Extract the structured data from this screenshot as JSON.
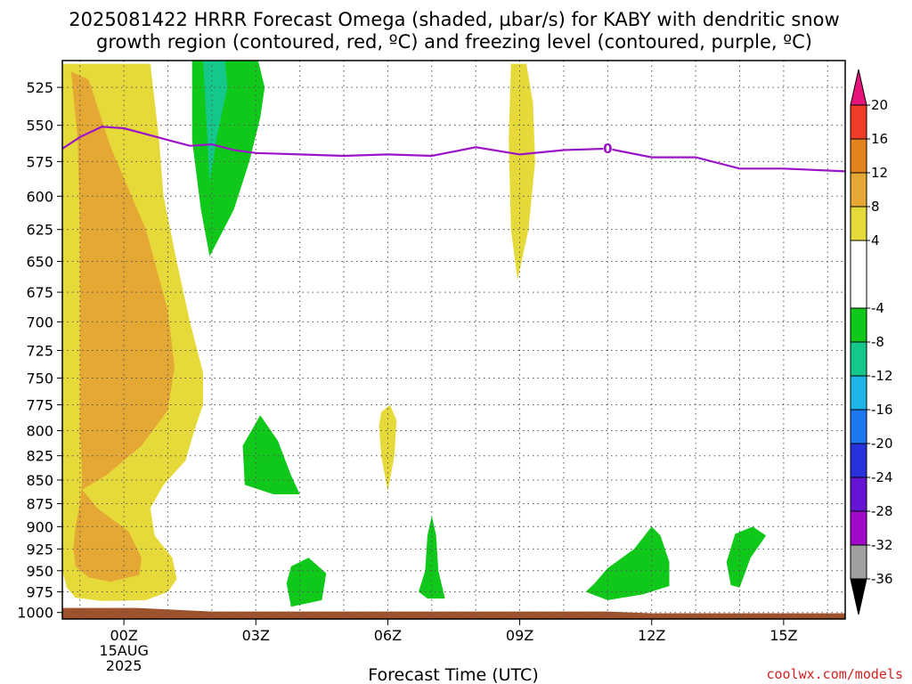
{
  "colors": {
    "omega": {
      "4": "#e6da3a",
      "8": "#e6a834",
      "-8": "#10c81a",
      "-12": "#14c88c",
      "freezing": "#9b14c8",
      "ground": "#a0522d"
    },
    "colorbar": [
      {
        "from": -40,
        "to": -36,
        "color": "#000000"
      },
      {
        "from": -36,
        "to": -32,
        "color": "#a0a0a0"
      },
      {
        "from": -32,
        "to": -28,
        "color": "#a00ac8"
      },
      {
        "from": -28,
        "to": -24,
        "color": "#6414d2"
      },
      {
        "from": -24,
        "to": -20,
        "color": "#2832dc"
      },
      {
        "from": -20,
        "to": -16,
        "color": "#1e78f0"
      },
      {
        "from": -16,
        "to": -12,
        "color": "#1eb4e6"
      },
      {
        "from": -12,
        "to": -8,
        "color": "#14c88c"
      },
      {
        "from": -8,
        "to": -4,
        "color": "#10c81a"
      },
      {
        "from": -4,
        "to": 4,
        "color": "#ffffff"
      },
      {
        "from": 4,
        "to": 8,
        "color": "#e6da3a"
      },
      {
        "from": 8,
        "to": 12,
        "color": "#e6a834"
      },
      {
        "from": 12,
        "to": 16,
        "color": "#e6821e"
      },
      {
        "from": 16,
        "to": 20,
        "color": "#f03c28"
      },
      {
        "from": 20,
        "to": 24,
        "color": "#e6147a"
      }
    ]
  },
  "chart_data": {
    "type": "contour",
    "title_line1": "2025081422 HRRR Forecast Omega (shaded, µbar/s) for KABY with dendritic snow",
    "title_line2": "growth region (contoured, red, ºC) and freezing level (contoured, purple, ºC)",
    "xlabel": "Forecast Time (UTC)",
    "credit": "coolwx.com/models",
    "x_unit": "hours after 2025-08-15 00Z",
    "xlim": [
      -1.4,
      16.4
    ],
    "ylim": [
      1008,
      508
    ],
    "y_scale": "log pressure (hPa), inverted",
    "x_ticks": [
      {
        "x": 0,
        "label": "00Z",
        "sub1": "15AUG",
        "sub2": "2025"
      },
      {
        "x": 3,
        "label": "03Z"
      },
      {
        "x": 6,
        "label": "06Z"
      },
      {
        "x": 9,
        "label": "09Z"
      },
      {
        "x": 12,
        "label": "12Z"
      },
      {
        "x": 15,
        "label": "15Z"
      }
    ],
    "y_ticks": [
      525,
      550,
      575,
      600,
      625,
      650,
      675,
      700,
      725,
      750,
      775,
      800,
      825,
      850,
      875,
      900,
      925,
      950,
      975,
      1000
    ],
    "grid": true,
    "colorbar_labels": [
      "20",
      "16",
      "12",
      "8",
      "4",
      "-4",
      "-8",
      "-12",
      "-16",
      "-20",
      "-24",
      "-28",
      "-32",
      "-36"
    ],
    "regions": [
      {
        "level": "4",
        "points": [
          [
            -1.6,
            510
          ],
          [
            -1.5,
            650
          ],
          [
            -1.5,
            850
          ],
          [
            -1.5,
            925
          ],
          [
            -1.4,
            950
          ],
          [
            -1.3,
            970
          ],
          [
            -1.1,
            982
          ],
          [
            -0.5,
            986
          ],
          [
            0.5,
            985
          ],
          [
            1.0,
            975
          ],
          [
            1.2,
            960
          ],
          [
            1.1,
            935
          ],
          [
            0.7,
            910
          ],
          [
            0.6,
            880
          ],
          [
            0.9,
            855
          ],
          [
            1.4,
            830
          ],
          [
            1.6,
            800
          ],
          [
            1.8,
            775
          ],
          [
            1.8,
            745
          ],
          [
            1.5,
            700
          ],
          [
            1.2,
            650
          ],
          [
            0.9,
            600
          ],
          [
            0.8,
            560
          ],
          [
            0.6,
            510
          ]
        ]
      },
      {
        "level": "8",
        "points": [
          [
            -1.2,
            515
          ],
          [
            -1.05,
            560
          ],
          [
            -1.0,
            625
          ],
          [
            -1.0,
            725
          ],
          [
            -1.0,
            800
          ],
          [
            -0.95,
            850
          ],
          [
            -1.0,
            875
          ],
          [
            -1.1,
            900
          ],
          [
            -1.15,
            925
          ],
          [
            -1.1,
            945
          ],
          [
            -0.8,
            958
          ],
          [
            -0.3,
            963
          ],
          [
            0.35,
            955
          ],
          [
            0.4,
            935
          ],
          [
            0.1,
            905
          ],
          [
            -0.6,
            880
          ],
          [
            -0.95,
            860
          ],
          [
            -0.4,
            845
          ],
          [
            0.4,
            815
          ],
          [
            1.0,
            780
          ],
          [
            1.15,
            740
          ],
          [
            1.0,
            690
          ],
          [
            0.5,
            625
          ],
          [
            -0.3,
            565
          ],
          [
            -0.8,
            520
          ]
        ]
      },
      {
        "level": "-8",
        "points": [
          [
            1.55,
            508
          ],
          [
            1.55,
            560
          ],
          [
            1.75,
            610
          ],
          [
            1.95,
            646
          ],
          [
            2.5,
            610
          ],
          [
            2.85,
            575
          ],
          [
            3.1,
            545
          ],
          [
            3.2,
            525
          ],
          [
            3.05,
            508
          ]
        ]
      },
      {
        "level": "-12",
        "points": [
          [
            1.8,
            508
          ],
          [
            1.9,
            560
          ],
          [
            1.95,
            590
          ],
          [
            2.1,
            560
          ],
          [
            2.35,
            525
          ],
          [
            2.3,
            508
          ]
        ]
      },
      {
        "level": "4",
        "points": [
          [
            8.8,
            510
          ],
          [
            8.75,
            560
          ],
          [
            8.8,
            625
          ],
          [
            8.95,
            665
          ],
          [
            9.2,
            625
          ],
          [
            9.35,
            575
          ],
          [
            9.3,
            535
          ],
          [
            9.15,
            510
          ]
        ]
      },
      {
        "level": "4",
        "points": [
          [
            5.8,
            795
          ],
          [
            5.85,
            825
          ],
          [
            6.0,
            862
          ],
          [
            6.15,
            825
          ],
          [
            6.2,
            790
          ],
          [
            6.05,
            775
          ],
          [
            5.85,
            782
          ]
        ]
      },
      {
        "level": "-8",
        "points": [
          [
            2.7,
            815
          ],
          [
            2.75,
            855
          ],
          [
            3.4,
            865
          ],
          [
            4.0,
            865
          ],
          [
            3.8,
            845
          ],
          [
            3.5,
            810
          ],
          [
            3.1,
            785
          ]
        ]
      },
      {
        "level": "-8",
        "points": [
          [
            3.7,
            965
          ],
          [
            3.8,
            993
          ],
          [
            4.5,
            985
          ],
          [
            4.6,
            953
          ],
          [
            4.2,
            935
          ],
          [
            3.8,
            945
          ]
        ]
      },
      {
        "level": "-8",
        "points": [
          [
            6.7,
            975
          ],
          [
            6.9,
            983
          ],
          [
            7.3,
            983
          ],
          [
            7.15,
            950
          ],
          [
            7.1,
            910
          ],
          [
            7.0,
            888
          ],
          [
            6.9,
            910
          ],
          [
            6.85,
            950
          ]
        ]
      },
      {
        "level": "-8",
        "points": [
          [
            10.5,
            975
          ],
          [
            11.0,
            985
          ],
          [
            11.8,
            978
          ],
          [
            12.4,
            968
          ],
          [
            12.4,
            940
          ],
          [
            12.2,
            910
          ],
          [
            12.0,
            900
          ],
          [
            11.6,
            925
          ],
          [
            11.0,
            947
          ],
          [
            10.7,
            965
          ]
        ]
      },
      {
        "level": "-8",
        "points": [
          [
            13.7,
            940
          ],
          [
            13.8,
            967
          ],
          [
            14.0,
            970
          ],
          [
            14.25,
            935
          ],
          [
            14.6,
            910
          ],
          [
            14.3,
            900
          ],
          [
            13.9,
            908
          ]
        ]
      }
    ],
    "freezing_level": {
      "label": "0",
      "x": [
        -1.4,
        -1.0,
        -0.5,
        0.0,
        0.5,
        1.0,
        1.5,
        2.0,
        2.5,
        3.0,
        4.0,
        5.0,
        6.0,
        7.0,
        8.0,
        9.0,
        10.0,
        11.0,
        12.0,
        13.0,
        14.0,
        15.0,
        16.4
      ],
      "y": [
        566,
        558,
        551,
        552,
        556,
        560,
        564,
        563,
        567,
        569,
        570,
        571,
        570,
        571,
        565,
        570,
        567,
        566,
        572,
        572,
        580,
        580,
        582
      ],
      "label_x": 11.0,
      "label_y": 566
    },
    "ground": {
      "top": 1001
    }
  }
}
